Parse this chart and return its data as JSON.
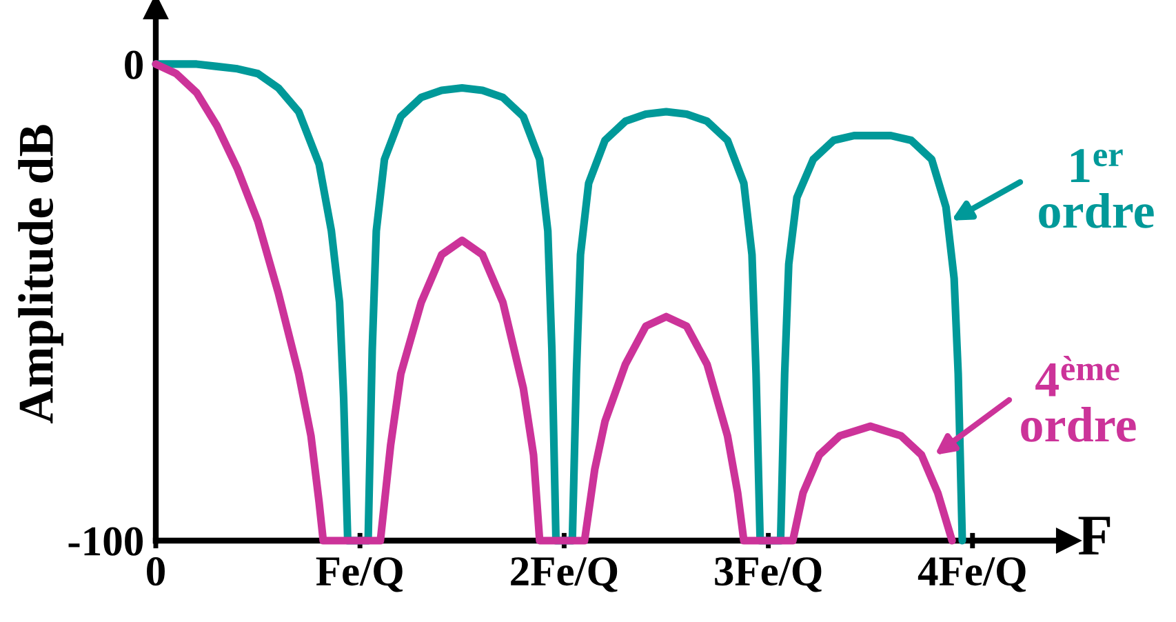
{
  "chart_data": {
    "type": "line",
    "xlabel": "F",
    "ylabel": "Amplitude dB",
    "xlim": [
      0,
      4.47
    ],
    "ylim": [
      -100,
      12
    ],
    "xticks": [
      0,
      {
        "value": 1,
        "label": "Fe/Q"
      },
      {
        "value": 2,
        "label": "2Fe/Q"
      },
      {
        "value": 3,
        "label": "3Fe/Q"
      },
      {
        "value": 4,
        "label": "4Fe/Q"
      }
    ],
    "yticks": [
      0,
      -100
    ],
    "grid": false,
    "legend": false,
    "marker": "none",
    "line_style": "solid",
    "series": [
      {
        "color": "#009999",
        "x": [
          0,
          0.2,
          0.3,
          0.4,
          0.5,
          0.6,
          0.7,
          0.8,
          0.86,
          0.9,
          0.92,
          0.94,
          1.04,
          1.06,
          1.08,
          1.12,
          1.2,
          1.3,
          1.4,
          1.5,
          1.6,
          1.7,
          1.8,
          1.88,
          1.92,
          1.94,
          1.96,
          2.04,
          2.06,
          2.08,
          2.12,
          2.2,
          2.3,
          2.4,
          2.5,
          2.6,
          2.7,
          2.8,
          2.88,
          2.92,
          2.94,
          2.96,
          3.06,
          3.08,
          3.1,
          3.14,
          3.22,
          3.32,
          3.42,
          3.5,
          3.6,
          3.7,
          3.8,
          3.87,
          3.91,
          3.93,
          3.95
        ],
        "values": [
          0,
          0,
          -0.5,
          -1,
          -2,
          -5,
          -10,
          -21,
          -35,
          -50,
          -70,
          -100,
          -100,
          -60,
          -35,
          -20,
          -11,
          -7,
          -5.5,
          -5,
          -5.5,
          -7,
          -11,
          -20,
          -35,
          -60,
          -100,
          -100,
          -65,
          -40,
          -25,
          -16,
          -12,
          -10.5,
          -10,
          -10.5,
          -12,
          -16,
          -25,
          -40,
          -65,
          -100,
          -100,
          -65,
          -42,
          -28,
          -20,
          -16,
          -15,
          -15,
          -15,
          -16,
          -20,
          -30,
          -45,
          -65,
          -100
        ]
      },
      {
        "color": "#cc3399",
        "x": [
          0,
          0.1,
          0.2,
          0.3,
          0.4,
          0.5,
          0.6,
          0.7,
          0.76,
          0.8,
          0.82,
          1.1,
          1.15,
          1.2,
          1.3,
          1.4,
          1.5,
          1.6,
          1.7,
          1.8,
          1.85,
          1.88,
          2.1,
          2.15,
          2.2,
          2.3,
          2.4,
          2.5,
          2.6,
          2.7,
          2.8,
          2.85,
          2.88,
          3.12,
          3.17,
          3.25,
          3.35,
          3.5,
          3.65,
          3.75,
          3.83,
          3.9
        ],
        "values": [
          0,
          -2,
          -6,
          -13,
          -22,
          -33,
          -48,
          -65,
          -78,
          -92,
          -100,
          -100,
          -80,
          -65,
          -50,
          -40,
          -37,
          -40,
          -50,
          -68,
          -82,
          -100,
          -100,
          -85,
          -75,
          -63,
          -55,
          -53,
          -55,
          -63,
          -78,
          -90,
          -100,
          -100,
          -90,
          -82,
          -78,
          -76,
          -78,
          -82,
          -90,
          -100
        ]
      }
    ],
    "annotations": [
      "1$^{er}$ ordre",
      "4$^{ème}$ ordre"
    ]
  }
}
